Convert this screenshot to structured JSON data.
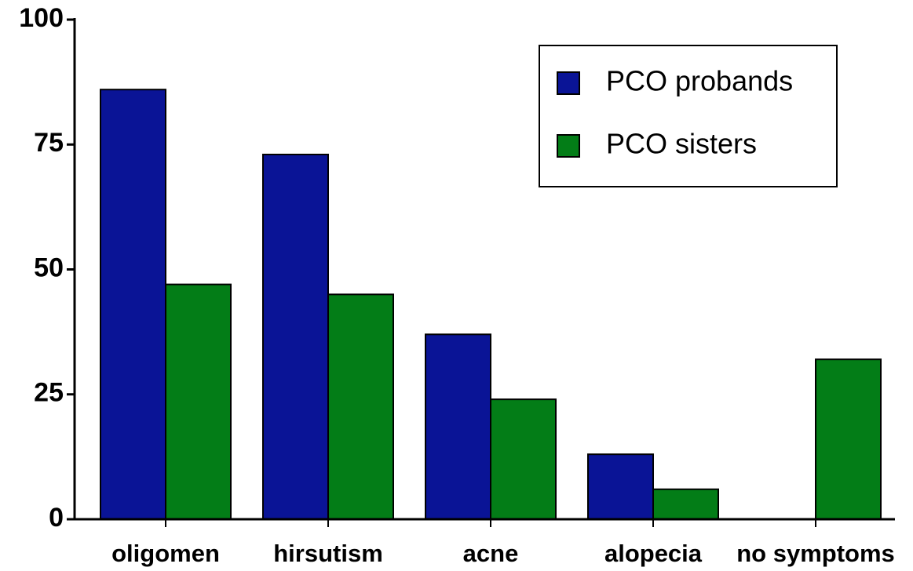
{
  "chart_data": {
    "type": "bar",
    "categories": [
      "oligomen",
      "hirsutism",
      "acne",
      "alopecia",
      "no symptoms"
    ],
    "series": [
      {
        "name": "PCO probands",
        "color": "#0a1496",
        "values": [
          86,
          73,
          37,
          13,
          0
        ]
      },
      {
        "name": "PCO sisters",
        "color": "#037d17",
        "values": [
          47,
          45,
          24,
          6,
          32
        ]
      }
    ],
    "ylim": [
      0,
      100
    ],
    "yticks": [
      0,
      25,
      50,
      75,
      100
    ],
    "legend": "upper right"
  }
}
